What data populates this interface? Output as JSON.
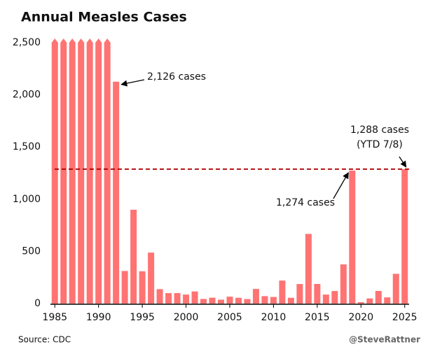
{
  "chart_data": {
    "type": "bar",
    "title": "Annual Measles Cases",
    "x": [
      1985,
      1986,
      1987,
      1988,
      1989,
      1990,
      1991,
      1992,
      1993,
      1994,
      1995,
      1996,
      1997,
      1998,
      1999,
      2000,
      2001,
      2002,
      2003,
      2004,
      2005,
      2006,
      2007,
      2008,
      2009,
      2010,
      2011,
      2012,
      2013,
      2014,
      2015,
      2016,
      2017,
      2018,
      2019,
      2020,
      2021,
      2022,
      2023,
      2024,
      2025
    ],
    "values": [
      2500,
      2500,
      2500,
      2500,
      2500,
      2500,
      2500,
      2126,
      312,
      899,
      309,
      488,
      138,
      100,
      100,
      86,
      116,
      44,
      56,
      37,
      66,
      55,
      43,
      140,
      71,
      63,
      220,
      55,
      187,
      667,
      188,
      86,
      120,
      375,
      1274,
      13,
      49,
      121,
      59,
      285,
      1288
    ],
    "value_labels": [
      null,
      null,
      null,
      null,
      null,
      null,
      null,
      "2,126 cases",
      null,
      null,
      null,
      null,
      null,
      null,
      null,
      null,
      null,
      null,
      null,
      null,
      null,
      null,
      null,
      null,
      null,
      null,
      null,
      null,
      null,
      null,
      null,
      null,
      null,
      null,
      "1,274 cases",
      null,
      null,
      null,
      null,
      null,
      "1,288 cases"
    ],
    "annotation": "(YTD 7/8)",
    "color": "#ff7373",
    "xlim": [
      1984.5,
      2025.5
    ],
    "xticks": [
      1985,
      1990,
      1995,
      2000,
      2005,
      2010,
      2015,
      2020,
      2025
    ],
    "ylim": [
      0,
      2500
    ],
    "yticks": [
      0,
      500,
      {
        "value": 1000,
        "label": "1,000"
      },
      {
        "value": 1500,
        "label": "1,500"
      },
      {
        "value": 2000,
        "label": "2,000"
      },
      {
        "value": 2500,
        "label": "2,500"
      }
    ],
    "source": "Source: CDC",
    "credit": "@SteveRattner"
  }
}
